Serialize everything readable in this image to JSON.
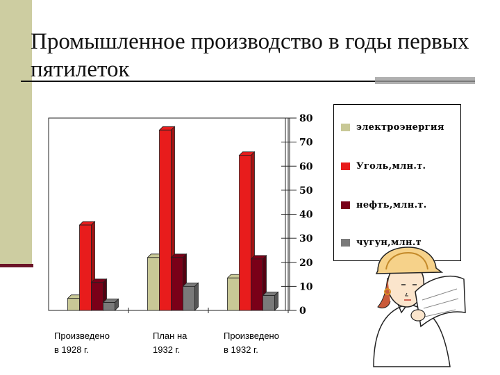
{
  "slide": {
    "title": "Промышленное производство в годы первых пятилеток"
  },
  "chart_data": {
    "type": "bar",
    "categories": [
      "Произведено\nв 1928 г.",
      "План на\n1932 г.",
      "Произведено\nв 1932 г."
    ],
    "series": [
      {
        "name": "электроэнергия",
        "values": [
          5,
          22,
          13.5
        ],
        "color": "#c8c896"
      },
      {
        "name": "Уголь,млн.т.",
        "values": [
          35.5,
          75,
          64.5
        ],
        "color": "#e81c1c"
      },
      {
        "name": "нефть,млн.т.",
        "values": [
          11.6,
          22,
          21.4
        ],
        "color": "#7a0018"
      },
      {
        "name": "чугун,млн.т",
        "values": [
          3.3,
          10,
          6.2
        ],
        "color": "#7a7a7a"
      }
    ],
    "ylim": [
      0,
      80
    ],
    "yticks": [
      "0",
      "10",
      "20",
      "30",
      "40",
      "50",
      "60",
      "70",
      "80"
    ],
    "y_axis_side": "right",
    "legend_position": "right",
    "three_d": true
  }
}
